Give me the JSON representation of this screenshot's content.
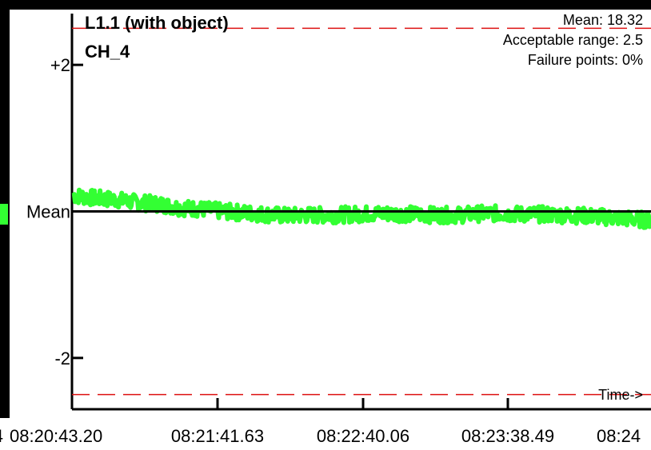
{
  "chart_data": {
    "type": "line",
    "title": "L1.1 (with object)",
    "subtitle": "CH_4",
    "stats": {
      "mean": "Mean: 18.32",
      "acceptable_range": "Acceptable range: 2.5",
      "failure_points": "Failure points: 0%"
    },
    "xlabel": "Time->",
    "ylabel": "",
    "y_ticks": [
      {
        "value": 2,
        "label": "+2"
      },
      {
        "value": 0,
        "label": "Mean"
      },
      {
        "value": -2,
        "label": "-2"
      }
    ],
    "x_ticks": [
      "08:20:43.20",
      "08:21:41.63",
      "08:22:40.06",
      "08:23:38.49",
      "08:24"
    ],
    "clipped_left_tick": "4",
    "ylim": [
      -2.7,
      2.7
    ],
    "limits": [
      2.5,
      -2.5
    ],
    "mean_line": 0,
    "grid": false,
    "series": [
      {
        "color": "#33ff33",
        "values": [
          0.22,
          0.18,
          0.16,
          0.12,
          0.1,
          0.05,
          0.03,
          0.0,
          -0.02,
          -0.04,
          -0.06,
          -0.05,
          -0.05,
          -0.04,
          -0.03,
          -0.03,
          -0.04,
          -0.05,
          -0.05,
          -0.03,
          -0.03,
          -0.04,
          -0.04,
          -0.05,
          -0.06,
          -0.08,
          -0.1,
          -0.12
        ]
      }
    ]
  }
}
